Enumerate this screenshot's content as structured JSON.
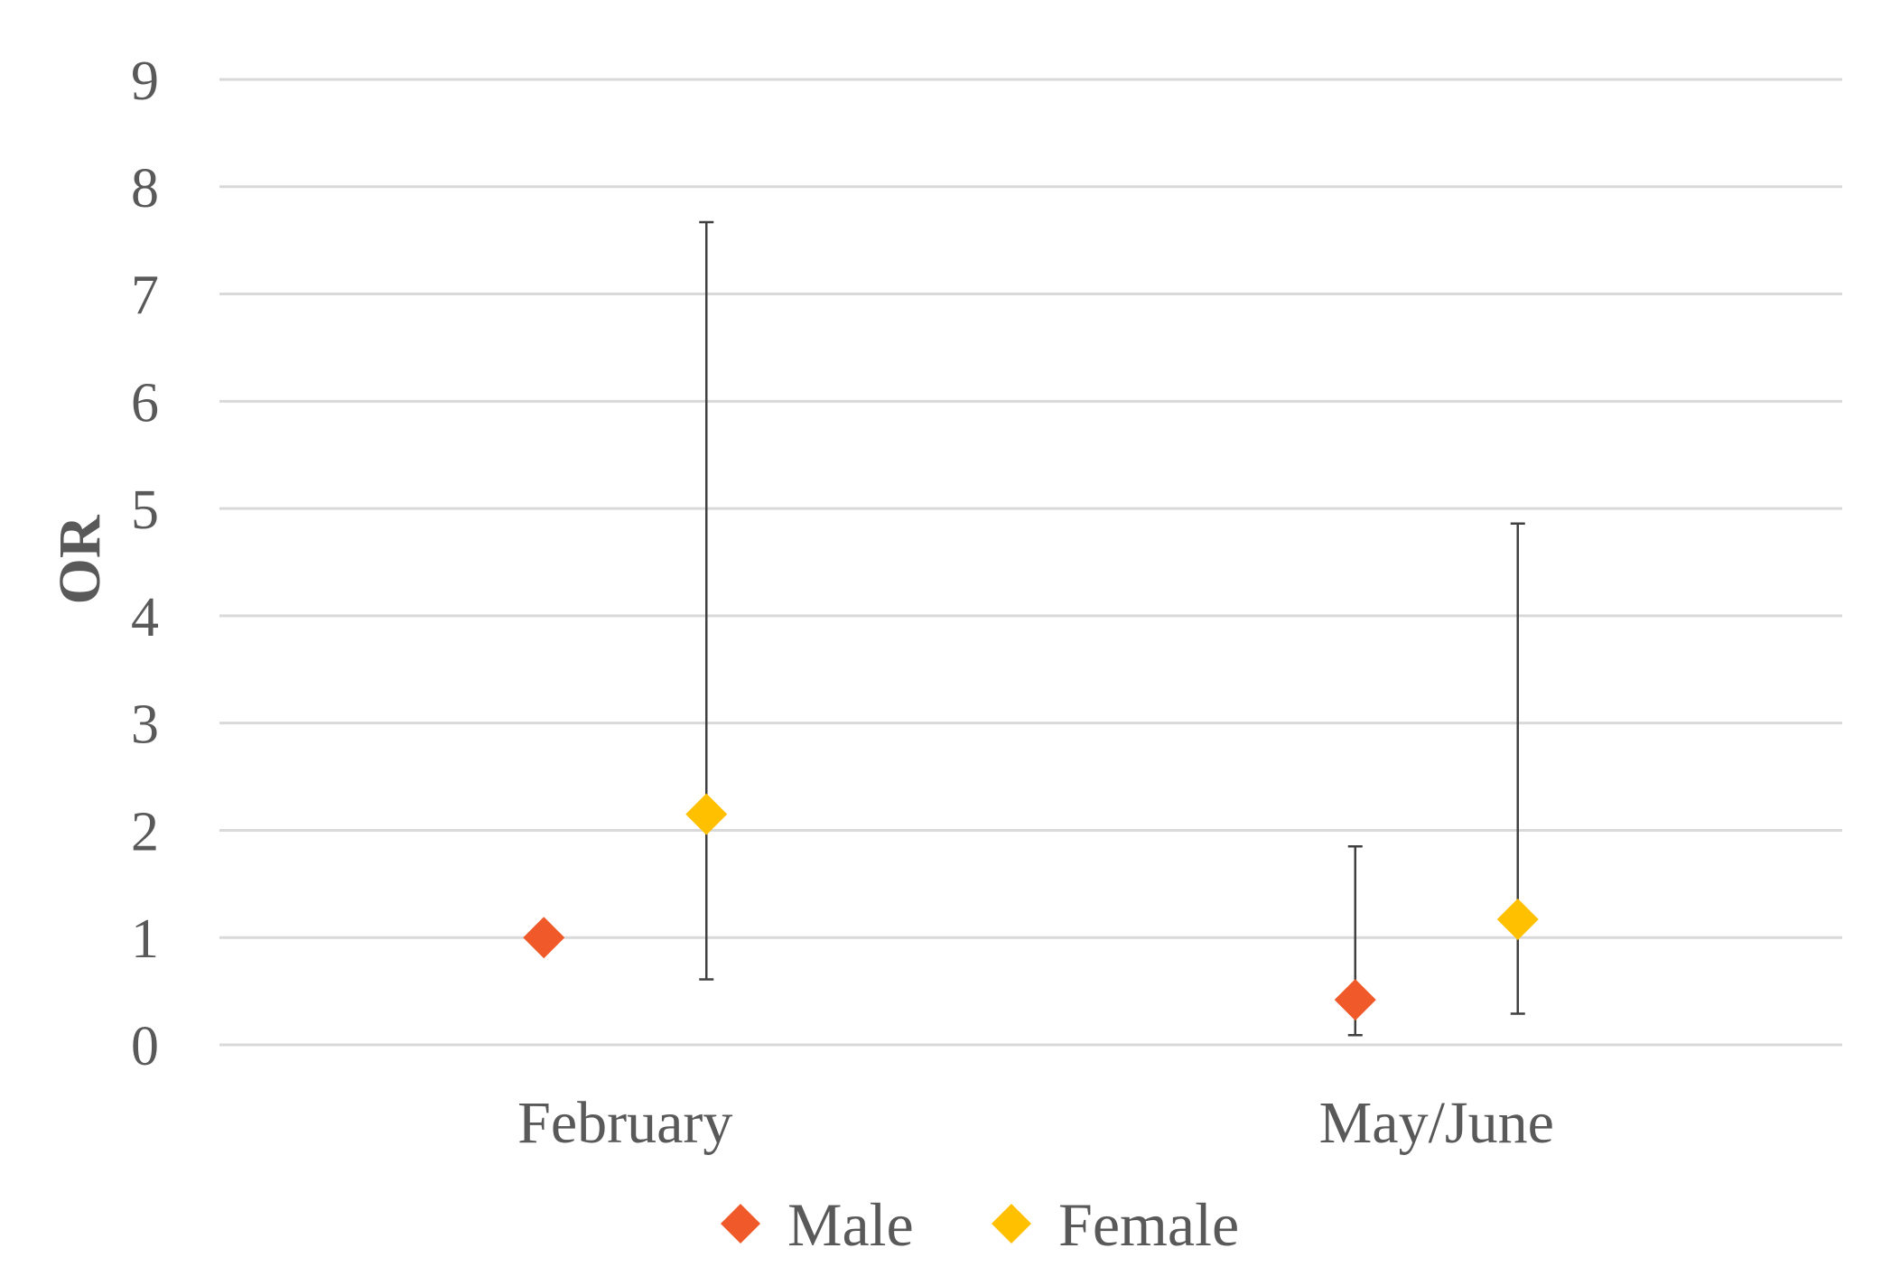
{
  "chart_data": {
    "type": "scatter",
    "ylabel": "OR",
    "ylim": [
      0,
      9
    ],
    "yticks": [
      0,
      1,
      2,
      3,
      4,
      5,
      6,
      7,
      8,
      9
    ],
    "categories": [
      "February",
      "May/June"
    ],
    "grid": true,
    "legend_position": "bottom",
    "series": [
      {
        "name": "Male",
        "color": "#f05a2a",
        "marker": "diamond",
        "values": [
          1.0,
          0.42
        ],
        "ci_lower": [
          null,
          0.09
        ],
        "ci_upper": [
          null,
          1.85
        ]
      },
      {
        "name": "Female",
        "color": "#ffc000",
        "marker": "diamond",
        "values": [
          2.15,
          1.17
        ],
        "ci_lower": [
          0.61,
          0.29
        ],
        "ci_upper": [
          7.67,
          4.86
        ]
      }
    ]
  }
}
